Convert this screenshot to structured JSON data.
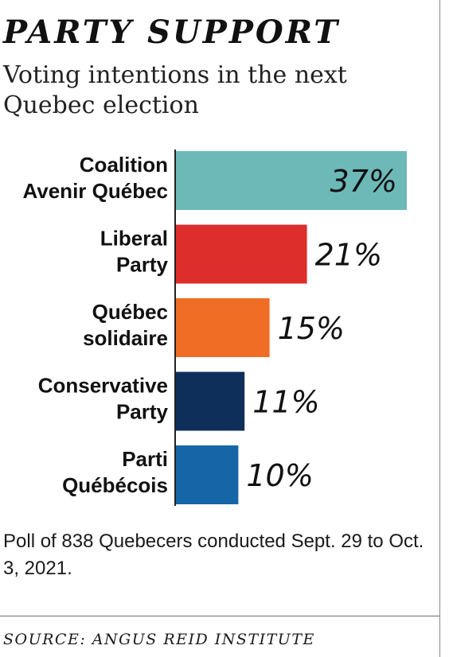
{
  "header": {
    "title": "PARTY SUPPORT",
    "subtitle": "Voting intentions in the next Quebec election"
  },
  "footer": {
    "note": "Poll of 838 Quebecers conducted Sept. 29 to Oct. 3, 2021.",
    "source": "SOURCE: ANGUS REID INSTITUTE"
  },
  "chart_data": {
    "type": "bar",
    "orientation": "horizontal",
    "title": "PARTY SUPPORT",
    "subtitle": "Voting intentions in the next Quebec election",
    "categories": [
      "Coalition Avenir Québec",
      "Liberal Party",
      "Québec solidaire",
      "Conservative Party",
      "Parti Québécois"
    ],
    "category_lines": [
      [
        "Coalition",
        "Avenir Québec"
      ],
      [
        "Liberal",
        "Party"
      ],
      [
        "Québec",
        "solidaire"
      ],
      [
        "Conservative",
        "Party"
      ],
      [
        "Parti",
        "Québécois"
      ]
    ],
    "values": [
      37,
      21,
      15,
      11,
      10
    ],
    "value_labels": [
      "37%",
      "21%",
      "15%",
      "11%",
      "10%"
    ],
    "colors": [
      "#6cb9b8",
      "#dd2e2c",
      "#ef6d25",
      "#0e2f5a",
      "#1565a7"
    ],
    "unit": "%",
    "xlim": [
      0,
      37
    ],
    "grid": false,
    "legend": "none",
    "axis_line": "left"
  }
}
